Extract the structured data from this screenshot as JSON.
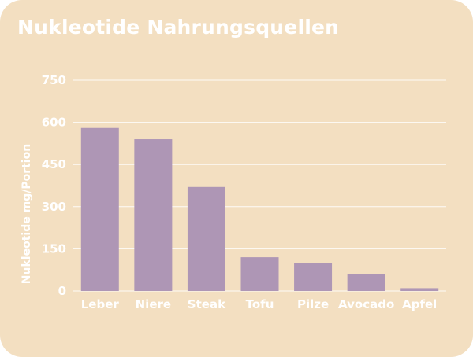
{
  "chart_data": {
    "type": "bar",
    "title": "Nukleotide Nahrungsquellen",
    "ylabel": "Nukleotide mg/Portion",
    "xlabel": "",
    "categories": [
      "Leber",
      "Niere",
      "Steak",
      "Tofu",
      "Pilze",
      "Avocado",
      "Apfel"
    ],
    "values": [
      580,
      540,
      370,
      120,
      100,
      60,
      10
    ],
    "ylim": [
      0,
      750
    ],
    "yticks": [
      "0",
      "150",
      "300",
      "450",
      "600",
      "750"
    ],
    "grid": true,
    "legend": "none",
    "colors": {
      "background": "#f3dfc1",
      "bar": "#ae96b5",
      "text": "#ffffff",
      "grid": "#ffffff"
    }
  }
}
